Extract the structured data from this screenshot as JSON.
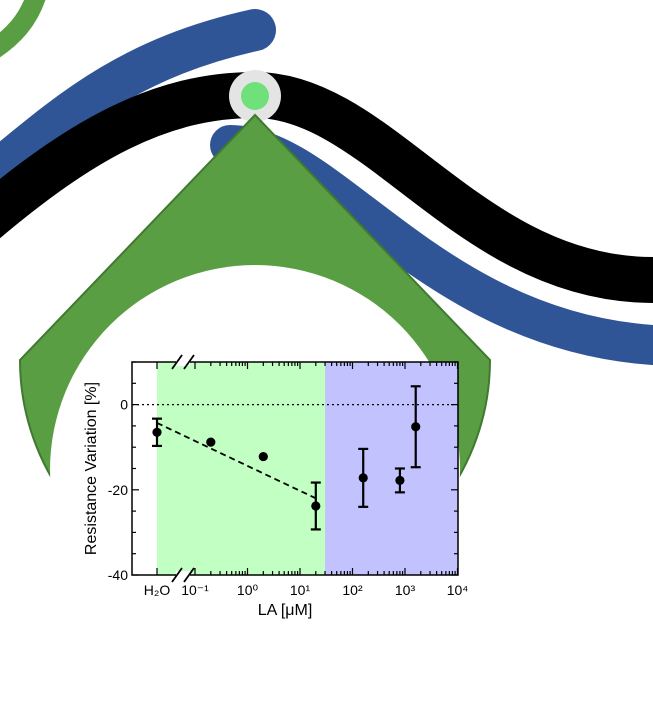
{
  "colors": {
    "green_drop": "#5a9e43",
    "green_drop_edge": "#3f7a30",
    "blue_band": "#2f5597",
    "black_band": "#000000",
    "green_dot": "#6fe07a",
    "green_region": "#c2ffc2",
    "blue_region": "#c2c2ff"
  },
  "chart_data": {
    "type": "scatter",
    "xlabel": "LA [μM]",
    "ylabel": "Resistance Variation [%]",
    "x_scale": "log",
    "x_tick_labels": [
      "H₂O",
      "10⁻¹",
      "10⁰",
      "10¹",
      "10²",
      "10³",
      "10⁴"
    ],
    "y_ticks": [
      0,
      -20,
      -40
    ],
    "ylim": [
      -40,
      10
    ],
    "regions": [
      {
        "color": "green",
        "x_from": "H₂O",
        "x_to": 30
      },
      {
        "color": "blue",
        "x_from": 30,
        "x_to": 10000
      }
    ],
    "reference_line": {
      "y": 0,
      "style": "dotted"
    },
    "points": [
      {
        "x": "H₂O",
        "y": -6.5,
        "err": 3.2
      },
      {
        "x": 0.2,
        "y": -8.8,
        "err": 0
      },
      {
        "x": 2,
        "y": -12.2,
        "err": 0
      },
      {
        "x": 20,
        "y": -23.8,
        "err": 5.5
      },
      {
        "x": 160,
        "y": -17.2,
        "err": 6.8
      },
      {
        "x": 800,
        "y": -17.8,
        "err": 2.8
      },
      {
        "x": 1600,
        "y": -5.2,
        "err": 9.5
      }
    ],
    "fit_line": {
      "style": "dashed",
      "from": {
        "x": "H₂O",
        "y": -4.3
      },
      "to": {
        "x": 20,
        "y": -22
      }
    }
  }
}
